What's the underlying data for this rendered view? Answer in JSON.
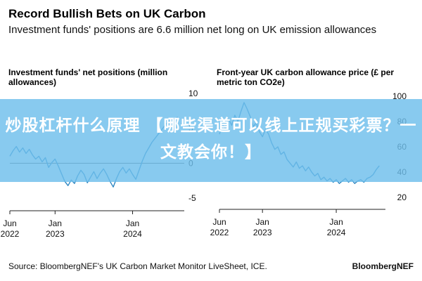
{
  "title": "Record Bullish Bets on UK Carbon",
  "subtitle": "Investment funds' positions are 6.6 million net long on UK emission allowances",
  "banner_text": "炒股杠杆什么原理 【哪些渠道可以线上正规买彩票？一文教会你！】",
  "source": "Source: BloombergNEF's UK Carbon Market Monitor LiveSheet, ICE.",
  "brand": "BloombergNEF",
  "colors": {
    "series": "#2e86c1",
    "zero_line": "#555555"
  },
  "chart_data": [
    {
      "type": "line",
      "title": "Investment funds' net positions (million allowances)",
      "y_ticks": [
        "10",
        "5",
        "0",
        "-5"
      ],
      "x_ticks": [
        {
          "line1": "Jun",
          "line2": "2022"
        },
        {
          "line1": "Jan",
          "line2": "2023"
        },
        {
          "line1": "Jan",
          "line2": "2024"
        }
      ],
      "ylim": [
        -6,
        10.5
      ],
      "zero_line": true,
      "x_range": [
        0,
        27
      ],
      "x_tick_positions": [
        0,
        7,
        19
      ],
      "series": [
        {
          "x": [
            0,
            0.5,
            1,
            1.5,
            2,
            2.5,
            3,
            3.5,
            4,
            4.5,
            5,
            5.5,
            6,
            6.5,
            7,
            7.5,
            8,
            8.5,
            9,
            9.5,
            10,
            10.5,
            11,
            11.5,
            12,
            12.5,
            13,
            13.5,
            14,
            14.5,
            15,
            15.5,
            16,
            16.5,
            17,
            17.5,
            18,
            18.5,
            19,
            19.5,
            20,
            20.5,
            21,
            21.5,
            22,
            22.5,
            23,
            23.5,
            24,
            24.5,
            25,
            25.5,
            26
          ],
          "y": [
            1,
            1.8,
            2.4,
            1.6,
            2.2,
            1.4,
            2.0,
            1.2,
            0.6,
            1.0,
            0.2,
            0.8,
            -0.6,
            0.1,
            0.6,
            -0.4,
            -1.5,
            -2.6,
            -3.2,
            -2.4,
            -2.9,
            -1.8,
            -1.0,
            -1.6,
            -2.8,
            -2.0,
            -1.2,
            -2.2,
            -1.4,
            -0.8,
            -1.6,
            -2.6,
            -3.4,
            -2.2,
            -1.2,
            -0.6,
            -1.4,
            -0.8,
            -1.6,
            -2.3,
            -1.0,
            0.3,
            1.4,
            2.2,
            3.0,
            3.6,
            4.2,
            4.8,
            5.4,
            5.9,
            6.2,
            6.4,
            6.6
          ]
        }
      ]
    },
    {
      "type": "line",
      "title": "Front-year UK carbon allowance price (£ per metric ton CO2e)",
      "y_ticks": [
        "100",
        "80",
        "60",
        "40",
        "20"
      ],
      "x_ticks": [
        {
          "line1": "Jun",
          "line2": "2022"
        },
        {
          "line1": "Jan",
          "line2": "2023"
        },
        {
          "line1": "Jan",
          "line2": "2024"
        }
      ],
      "ylim": [
        15,
        105
      ],
      "zero_line": false,
      "x_range": [
        0,
        27
      ],
      "x_tick_positions": [
        0,
        7,
        19
      ],
      "series": [
        {
          "x": [
            0,
            0.5,
            1,
            1.5,
            2,
            2.5,
            3,
            3.5,
            4,
            4.5,
            5,
            5.5,
            6,
            6.5,
            7,
            7.5,
            8,
            8.5,
            9,
            9.5,
            10,
            10.5,
            11,
            11.5,
            12,
            12.5,
            13,
            13.5,
            14,
            14.5,
            15,
            15.5,
            16,
            16.5,
            17,
            17.5,
            18,
            18.5,
            19,
            19.5,
            20,
            20.5,
            21,
            21.5,
            22,
            22.5,
            23,
            23.5,
            24,
            24.5,
            25,
            25.5,
            26
          ],
          "y": [
            70,
            78,
            74,
            82,
            77,
            85,
            80,
            88,
            95,
            90,
            84,
            76,
            79,
            72,
            68,
            74,
            70,
            63,
            58,
            60,
            54,
            56,
            50,
            47,
            44,
            48,
            43,
            45,
            41,
            44,
            40,
            37,
            39,
            34,
            36,
            33,
            35,
            32,
            34,
            31,
            33,
            35,
            32,
            34,
            31,
            33,
            34,
            32,
            35,
            36,
            38,
            42,
            45
          ]
        }
      ]
    }
  ]
}
